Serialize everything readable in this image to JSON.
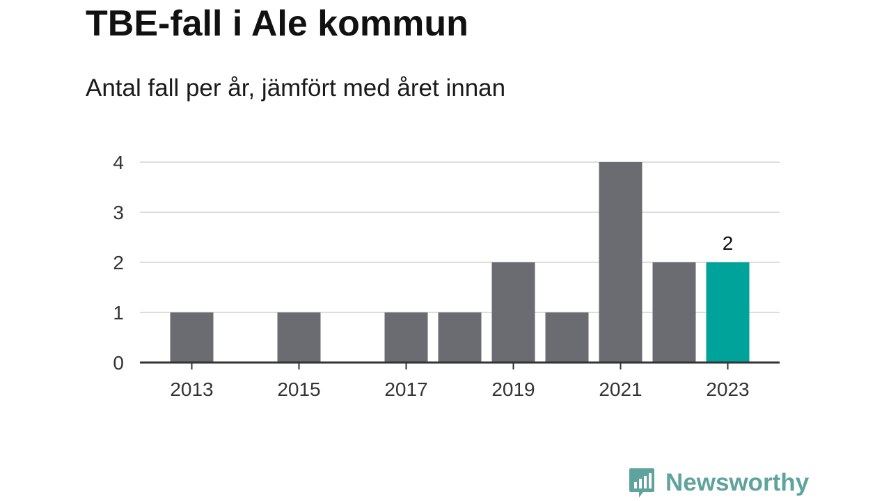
{
  "header": {
    "title": "TBE-fall i Ale kommun",
    "subtitle": "Antal fall per år, jämfört med året innan"
  },
  "chart_data": {
    "type": "bar",
    "categories": [
      "2013",
      "2014",
      "2015",
      "2016",
      "2017",
      "2018",
      "2019",
      "2020",
      "2021",
      "2022",
      "2023"
    ],
    "values": [
      1,
      0,
      1,
      0,
      1,
      1,
      2,
      1,
      4,
      2,
      2
    ],
    "x_tick_labels": [
      "2013",
      "2015",
      "2017",
      "2019",
      "2021",
      "2023"
    ],
    "y_ticks": [
      0,
      1,
      2,
      3,
      4
    ],
    "ylim": [
      0,
      4
    ],
    "grid": true,
    "highlight_category": "2023",
    "data_labels": [
      {
        "category": "2023",
        "text": "2"
      }
    ],
    "title": "TBE-fall i Ale kommun",
    "subtitle": "Antal fall per år, jämfört med året innan",
    "xlabel": "",
    "ylabel": ""
  },
  "colors": {
    "bar": "#6b6b72",
    "highlight": "#00a39a",
    "grid": "#dddddd",
    "axis": "#333333",
    "brand": "#5fa39e"
  },
  "logo": {
    "text": "Newsworthy",
    "icon": "newsworthy-logo-icon"
  }
}
